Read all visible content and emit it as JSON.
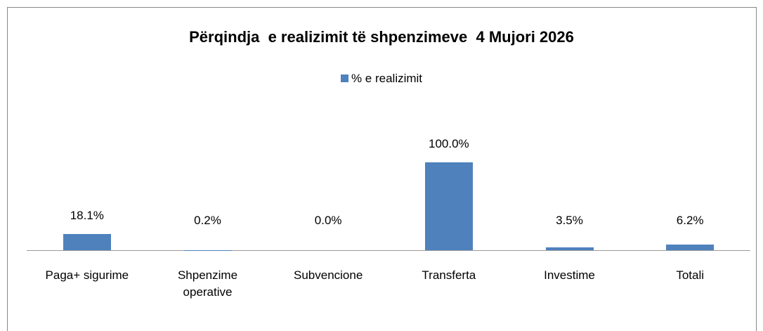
{
  "chart_data": {
    "type": "bar",
    "title": "Përqindja  e realizimit të shpenzimeve  4 Mujori 2026",
    "categories": [
      "Paga+ sigurime",
      "Shpenzime operative",
      "Subvencione",
      "Transferta",
      "Investime",
      "Totali"
    ],
    "series": [
      {
        "name": "% e realizimit",
        "color": "#4f81bd",
        "values": [
          18.1,
          0.2,
          0.0,
          100.0,
          3.5,
          6.2
        ],
        "value_labels": [
          "18.1%",
          "0.2%",
          "0.0%",
          "100.0%",
          "3.5%",
          "6.2%"
        ]
      }
    ],
    "ylim": [
      0,
      100
    ],
    "legend": "top"
  }
}
